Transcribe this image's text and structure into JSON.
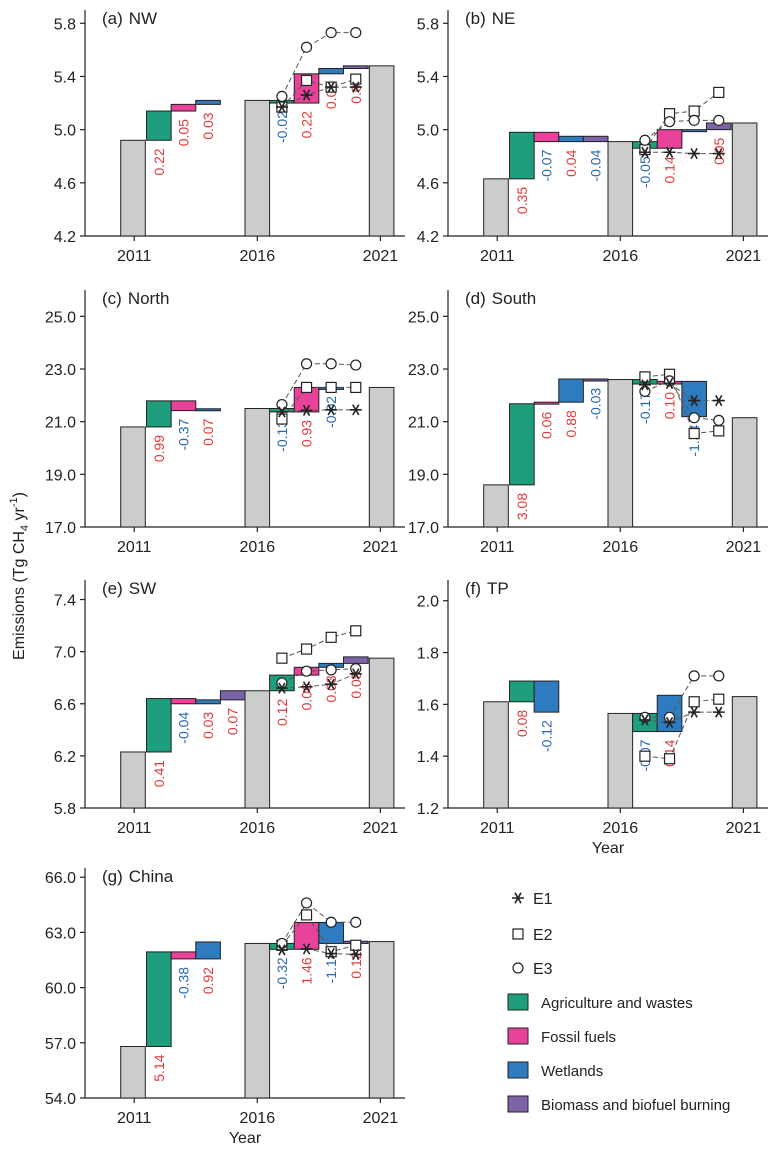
{
  "figure": {
    "ylabel": "Emissions (Tg CH",
    "ylabel_sub": "4",
    "ylabel_unit": " yr",
    "ylabel_sup": "-1",
    "ylabel_close": ")",
    "xlabel": "Year"
  },
  "colors": {
    "baseline": "#cbcdcb",
    "agriculture": "#1e9e7c",
    "fossil": "#e8429a",
    "wetlands": "#2f7bc0",
    "biomass": "#7d62a8",
    "pos_label": "#e03a3a",
    "neg_label": "#2a66ad"
  },
  "legend": {
    "markers": [
      {
        "key": "E1",
        "label": "E1"
      },
      {
        "key": "E2",
        "label": "E2"
      },
      {
        "key": "E3",
        "label": "E3"
      }
    ],
    "sectors": [
      {
        "key": "agriculture",
        "label": "Agriculture and wastes"
      },
      {
        "key": "fossil",
        "label": "Fossil fuels"
      },
      {
        "key": "wetlands",
        "label": "Wetlands"
      },
      {
        "key": "biomass",
        "label": "Biomass and biofuel burning"
      }
    ]
  },
  "chart_data": [
    {
      "type": "bar",
      "panel": "(a)",
      "title": "NW",
      "yticks": [
        "4.2",
        "4.6",
        "5.0",
        "5.4",
        "5.8"
      ],
      "ylim": [
        4.2,
        5.9
      ],
      "xticks": [
        "2011",
        "2016",
        "2021"
      ],
      "show_xlabel": false,
      "baseline": {
        "2011": 4.92,
        "2016": 5.22,
        "2021": 5.48
      },
      "steps1": [
        {
          "sector": "agriculture",
          "delta": "0.22"
        },
        {
          "sector": "fossil",
          "delta": "0.05"
        },
        {
          "sector": "wetlands",
          "delta": "0.03"
        }
      ],
      "steps2": [
        {
          "sector": "agriculture",
          "delta": "-0.02"
        },
        {
          "sector": "fossil",
          "delta": "0.22"
        },
        {
          "sector": "wetlands",
          "delta": "0.04"
        },
        {
          "sector": "biomass",
          "delta": "0.02"
        }
      ],
      "E1": [
        5.17,
        5.26,
        5.32,
        5.32
      ],
      "E2": [
        5.17,
        5.37,
        5.32,
        5.38
      ],
      "E3": [
        5.25,
        5.62,
        5.73,
        5.73
      ]
    },
    {
      "type": "bar",
      "panel": "(b)",
      "title": "NE",
      "yticks": [
        "4.2",
        "4.6",
        "5.0",
        "5.4",
        "5.8"
      ],
      "ylim": [
        4.2,
        5.9
      ],
      "xticks": [
        "2011",
        "2016",
        "2021"
      ],
      "show_xlabel": false,
      "baseline": {
        "2011": 4.63,
        "2016": 4.91,
        "2021": 5.05
      },
      "steps1": [
        {
          "sector": "agriculture",
          "delta": "0.35"
        },
        {
          "sector": "fossil",
          "delta": "-0.07"
        },
        {
          "sector": "wetlands",
          "delta": "0.04"
        },
        {
          "sector": "biomass",
          "delta": "-0.04"
        }
      ],
      "steps2": [
        {
          "sector": "agriculture",
          "delta": "-0.05"
        },
        {
          "sector": "fossil",
          "delta": "0.14"
        },
        {
          "sector": "wetlands",
          "delta": ""
        },
        {
          "sector": "biomass",
          "delta": "0.05"
        }
      ],
      "E1": [
        4.83,
        4.83,
        4.82,
        4.82
      ],
      "E2": [
        4.85,
        5.12,
        5.14,
        5.28
      ],
      "E3": [
        4.92,
        5.06,
        5.07,
        5.07
      ]
    },
    {
      "type": "bar",
      "panel": "(c)",
      "title": "North",
      "yticks": [
        "17.0",
        "19.0",
        "21.0",
        "23.0",
        "25.0"
      ],
      "ylim": [
        17.0,
        26.0
      ],
      "xticks": [
        "2011",
        "2016",
        "2021"
      ],
      "show_xlabel": false,
      "baseline": {
        "2011": 20.8,
        "2016": 21.5,
        "2021": 22.3
      },
      "steps1": [
        {
          "sector": "agriculture",
          "delta": "0.99"
        },
        {
          "sector": "fossil",
          "delta": "-0.37"
        },
        {
          "sector": "wetlands",
          "delta": "0.07"
        }
      ],
      "steps2": [
        {
          "sector": "agriculture",
          "delta": "-0.13"
        },
        {
          "sector": "fossil",
          "delta": "0.93"
        },
        {
          "sector": "wetlands",
          "delta": "-0.02"
        }
      ],
      "E1": [
        21.37,
        21.43,
        21.45,
        21.45
      ],
      "E2": [
        21.1,
        22.3,
        22.3,
        22.3
      ],
      "E3": [
        21.65,
        23.2,
        23.2,
        23.15
      ]
    },
    {
      "type": "bar",
      "panel": "(d)",
      "title": "South",
      "yticks": [
        "17.0",
        "19.0",
        "21.0",
        "23.0",
        "25.0"
      ],
      "ylim": [
        17.0,
        26.0
      ],
      "xticks": [
        "2011",
        "2016",
        "2021"
      ],
      "show_xlabel": false,
      "baseline": {
        "2011": 18.6,
        "2016": 22.6,
        "2021": 21.15
      },
      "steps1": [
        {
          "sector": "agriculture",
          "delta": "3.08"
        },
        {
          "sector": "fossil",
          "delta": "0.06"
        },
        {
          "sector": "wetlands",
          "delta": "0.88"
        },
        {
          "sector": "biomass",
          "delta": "-0.03"
        }
      ],
      "steps2": [
        {
          "sector": "agriculture",
          "delta": "-0.17"
        },
        {
          "sector": "fossil",
          "delta": "0.10"
        },
        {
          "sector": "wetlands",
          "delta": "-1.34"
        }
      ],
      "E1": [
        22.4,
        22.45,
        21.8,
        21.8
      ],
      "E2": [
        22.7,
        22.8,
        20.55,
        20.65
      ],
      "E3": [
        22.15,
        22.55,
        21.15,
        21.05
      ]
    },
    {
      "type": "bar",
      "panel": "(e)",
      "title": "SW",
      "yticks": [
        "5.8",
        "6.2",
        "6.6",
        "7.0",
        "7.4"
      ],
      "ylim": [
        5.8,
        7.55
      ],
      "xticks": [
        "2011",
        "2016",
        "2021"
      ],
      "show_xlabel": false,
      "baseline": {
        "2011": 6.23,
        "2016": 6.7,
        "2021": 6.95
      },
      "steps1": [
        {
          "sector": "agriculture",
          "delta": "0.41"
        },
        {
          "sector": "fossil",
          "delta": "-0.04"
        },
        {
          "sector": "wetlands",
          "delta": "0.03"
        },
        {
          "sector": "biomass",
          "delta": "0.07"
        }
      ],
      "steps2": [
        {
          "sector": "agriculture",
          "delta": "0.12"
        },
        {
          "sector": "fossil",
          "delta": "0.06"
        },
        {
          "sector": "wetlands",
          "delta": "0.03"
        },
        {
          "sector": "biomass",
          "delta": "0.05"
        }
      ],
      "E1": [
        6.72,
        6.73,
        6.75,
        6.83
      ],
      "E2": [
        6.95,
        7.02,
        7.11,
        7.16
      ],
      "E3": [
        6.76,
        6.85,
        6.86,
        6.87
      ]
    },
    {
      "type": "bar",
      "panel": "(f)",
      "title": "TP",
      "yticks": [
        "1.2",
        "1.4",
        "1.6",
        "1.8",
        "2.0"
      ],
      "ylim": [
        1.2,
        2.08
      ],
      "xticks": [
        "2011",
        "2016",
        "2021"
      ],
      "show_xlabel": true,
      "baseline": {
        "2011": 1.61,
        "2016": 1.565,
        "2021": 1.63
      },
      "steps1": [
        {
          "sector": "agriculture",
          "delta": "0.08"
        },
        {
          "sector": "wetlands",
          "delta": "-0.12"
        }
      ],
      "steps2": [
        {
          "sector": "agriculture",
          "delta": "-0.07"
        },
        {
          "sector": "wetlands",
          "delta": "0.14"
        }
      ],
      "E1": [
        1.54,
        1.53,
        1.57,
        1.57
      ],
      "E2": [
        1.4,
        1.39,
        1.61,
        1.62
      ],
      "E3": [
        1.55,
        1.55,
        1.71,
        1.71
      ]
    },
    {
      "type": "bar",
      "panel": "(g)",
      "title": "China",
      "yticks": [
        "54.0",
        "57.0",
        "60.0",
        "63.0",
        "66.0"
      ],
      "ylim": [
        54.0,
        66.5
      ],
      "xticks": [
        "2011",
        "2016",
        "2021"
      ],
      "show_xlabel": true,
      "baseline": {
        "2011": 56.8,
        "2016": 62.4,
        "2021": 62.5
      },
      "steps1": [
        {
          "sector": "agriculture",
          "delta": "5.14"
        },
        {
          "sector": "fossil",
          "delta": "-0.38"
        },
        {
          "sector": "wetlands",
          "delta": "0.92"
        }
      ],
      "steps2": [
        {
          "sector": "agriculture",
          "delta": "-0.32"
        },
        {
          "sector": "fossil",
          "delta": "1.46"
        },
        {
          "sector": "wetlands",
          "delta": "-1.14"
        },
        {
          "sector": "biomass",
          "delta": "0.12"
        }
      ],
      "E1": [
        62.05,
        62.1,
        61.85,
        61.8
      ],
      "E2": [
        62.3,
        63.95,
        61.95,
        62.3
      ],
      "E3": [
        62.4,
        64.6,
        63.55,
        63.55
      ]
    }
  ]
}
